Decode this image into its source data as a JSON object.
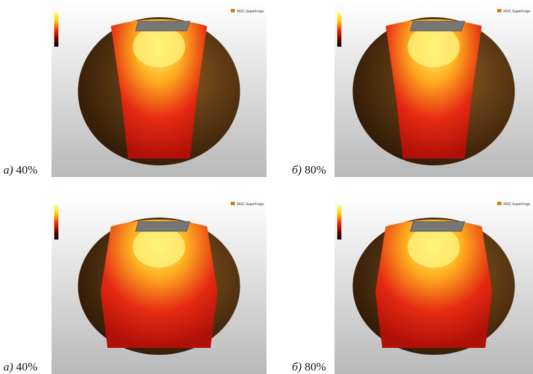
{
  "figure": {
    "logo": "MSC.SuperForge",
    "panels": [
      {
        "letter": "а)",
        "percent": "40%"
      },
      {
        "letter": "б)",
        "percent": "80%"
      },
      {
        "letter": "а)",
        "percent": "40%"
      },
      {
        "letter": "б)",
        "percent": "80%"
      }
    ]
  }
}
